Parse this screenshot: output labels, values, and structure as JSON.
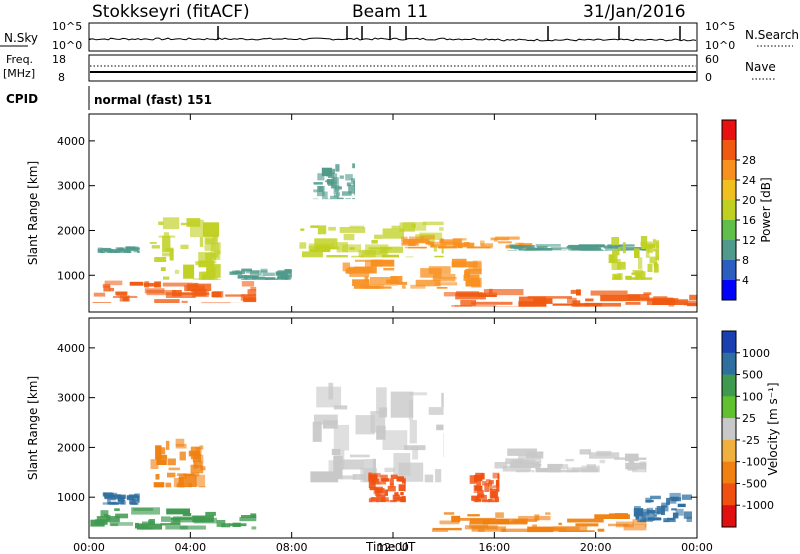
{
  "header": {
    "station": "Stokkseyri (fitACF)",
    "beam": "Beam 11",
    "date": "31/Jan/2016"
  },
  "top_panels": {
    "nsky_label": "N.Sky",
    "nsearch_label": "N.Search",
    "nsky_ticks": [
      "10^5",
      "10^0"
    ],
    "freq_label_1": "Freq.",
    "freq_label_2": "[MHz]",
    "freq_ticks": [
      "18",
      "8"
    ],
    "nave_label": "Nave",
    "nave_ticks": [
      "60",
      "0"
    ],
    "cpid_label": "CPID",
    "cpid_text": "normal (fast) 151"
  },
  "chart_data": [
    {
      "type": "heatmap",
      "title": "",
      "xlabel": "Time UT",
      "ylabel": "Slant Range [km]",
      "x_ticks": [
        "00:00",
        "04:00",
        "08:00",
        "12:00",
        "16:00",
        "20:00",
        "00:00"
      ],
      "y_ticks": [
        1000,
        2000,
        3000,
        4000
      ],
      "xlim": [
        0,
        24
      ],
      "ylim": [
        180,
        4600
      ],
      "colorbar": {
        "label": "Power [dB]",
        "ticks": [
          4,
          8,
          12,
          16,
          20,
          24,
          28
        ],
        "colors": [
          "#0000ff",
          "#2a5fbf",
          "#4f9a8a",
          "#5fbf4a",
          "#bfd020",
          "#f0c020",
          "#f89020",
          "#f05a10",
          "#e81010"
        ]
      },
      "regions": [
        {
          "t0": 0.0,
          "t1": 6.6,
          "r0": 380,
          "r1": 880,
          "level": 28
        },
        {
          "t0": 2.2,
          "t1": 5.2,
          "r0": 900,
          "r1": 2300,
          "level": 16
        },
        {
          "t0": 0.3,
          "t1": 2.0,
          "r0": 1500,
          "r1": 1650,
          "level": 8
        },
        {
          "t0": 5.5,
          "t1": 8.0,
          "r0": 900,
          "r1": 1150,
          "level": 8
        },
        {
          "t0": 8.3,
          "t1": 14.0,
          "r0": 1400,
          "r1": 2200,
          "level": 18
        },
        {
          "t0": 8.8,
          "t1": 10.5,
          "r0": 2700,
          "r1": 3500,
          "level": 10
        },
        {
          "t0": 10.0,
          "t1": 15.5,
          "r0": 700,
          "r1": 1400,
          "level": 24
        },
        {
          "t0": 12.3,
          "t1": 17.5,
          "r0": 1600,
          "r1": 1900,
          "level": 26
        },
        {
          "t0": 14.0,
          "t1": 24.0,
          "r0": 300,
          "r1": 700,
          "level": 28
        },
        {
          "t0": 16.5,
          "t1": 22.0,
          "r0": 1550,
          "r1": 1700,
          "level": 8
        },
        {
          "t0": 20.5,
          "t1": 22.5,
          "r0": 900,
          "r1": 1900,
          "level": 16
        }
      ]
    },
    {
      "type": "heatmap",
      "title": "",
      "xlabel": "Time UT",
      "ylabel": "Slant Range [km]",
      "x_ticks": [
        "00:00",
        "04:00",
        "08:00",
        "12:00",
        "16:00",
        "20:00",
        "00:00"
      ],
      "y_ticks": [
        1000,
        2000,
        3000,
        4000
      ],
      "xlim": [
        0,
        24
      ],
      "ylim": [
        180,
        4600
      ],
      "colorbar": {
        "label": "Velocity [m s⁻¹]",
        "ticks": [
          "1000",
          "500",
          "100",
          "25",
          "-25",
          "-100",
          "-500",
          "-1000"
        ],
        "colors": [
          "#1a3fb0",
          "#2f6fa0",
          "#3f9a50",
          "#60c030",
          "#c8c8c8",
          "#f0b040",
          "#f08010",
          "#f05010",
          "#e01010"
        ]
      },
      "regions": [
        {
          "t0": 0.0,
          "t1": 6.6,
          "r0": 350,
          "r1": 800,
          "level": 100
        },
        {
          "t0": 2.4,
          "t1": 4.6,
          "r0": 1200,
          "r1": 2200,
          "level": -500
        },
        {
          "t0": 0.5,
          "t1": 2.0,
          "r0": 850,
          "r1": 1100,
          "level": 500
        },
        {
          "t0": 8.5,
          "t1": 14.0,
          "r0": 1300,
          "r1": 3300,
          "level": 25
        },
        {
          "t0": 11.0,
          "t1": 12.5,
          "r0": 900,
          "r1": 1500,
          "level": -1000
        },
        {
          "t0": 15.0,
          "t1": 16.2,
          "r0": 900,
          "r1": 1500,
          "level": -1000
        },
        {
          "t0": 13.5,
          "t1": 22.0,
          "r0": 300,
          "r1": 700,
          "level": -500
        },
        {
          "t0": 16.0,
          "t1": 22.0,
          "r0": 1500,
          "r1": 2000,
          "level": 25
        },
        {
          "t0": 21.5,
          "t1": 23.8,
          "r0": 500,
          "r1": 1100,
          "level": 500
        }
      ]
    }
  ]
}
